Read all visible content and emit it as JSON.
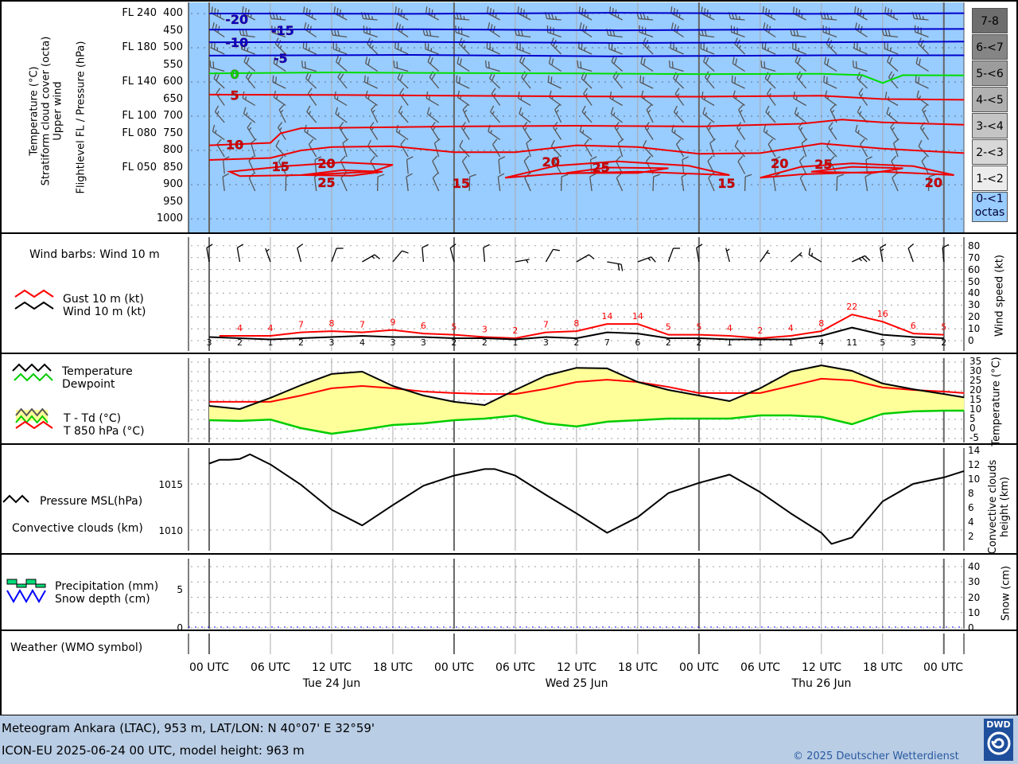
{
  "footer": {
    "line1": "Meteogram Ankara (LTAC), 953 m, LAT/LON: N 40°07' E 32°59'",
    "line2": "ICON-EU 2025-06-24 00 UTC, model height: 963 m",
    "copyright": "© 2025 Deutscher Wetterdienst",
    "logo_text": "DWD"
  },
  "time_axis": {
    "labels": [
      "00 UTC",
      "06 UTC",
      "12 UTC",
      "18 UTC",
      "00 UTC",
      "06 UTC",
      "12 UTC",
      "18 UTC",
      "00 UTC",
      "06 UTC",
      "12 UTC",
      "18 UTC",
      "00 UTC"
    ],
    "hours": [
      0,
      6,
      12,
      18,
      24,
      30,
      36,
      42,
      48,
      54,
      60,
      66,
      72
    ],
    "dates": [
      "Tue 24 Jun",
      "Wed 25 Jun",
      "Thu 26 Jun"
    ],
    "date_hours": [
      12,
      36,
      60
    ]
  },
  "chart_data": [
    {
      "type": "line",
      "panel": "upper_air",
      "title_lines": [
        "Temperature (°C)",
        "Stratiform cloud cover (octa)",
        "Upper wind"
      ],
      "ylabel": "Flightlevel FL / Pressure (hPa)",
      "pressure_ticks": [
        400,
        450,
        500,
        550,
        600,
        650,
        700,
        750,
        800,
        850,
        900,
        950,
        1000
      ],
      "flightlevels": [
        {
          "label": "FL 240",
          "p": 400
        },
        {
          "label": "FL 180",
          "p": 500
        },
        {
          "label": "FL 140",
          "p": 600
        },
        {
          "label": "FL 100",
          "p": 700
        },
        {
          "label": "FL 080",
          "p": 750
        },
        {
          "label": "FL 050",
          "p": 850
        }
      ],
      "ylim": [
        1020,
        370
      ],
      "cloud_cover_octas": 0,
      "cloud_legend": [
        "7-8",
        "6-<7",
        "5-<6",
        "4-<5",
        "3-<4",
        "2-<3",
        "1-<2",
        "0-<1 octas"
      ],
      "cloud_legend_colors": [
        "#6e6e6e",
        "#858585",
        "#9c9c9c",
        "#b0b0b0",
        "#c4c4c4",
        "#d8d8d8",
        "#ececec",
        "#99ccff"
      ],
      "background_color": "#99ccff",
      "isotherms": [
        {
          "t": -20,
          "color": "#0000cc",
          "points": [
            [
              0,
              400
            ],
            [
              20,
              401
            ],
            [
              40,
              398
            ],
            [
              60,
              401
            ],
            [
              74,
              399
            ]
          ]
        },
        {
          "t": -15,
          "color": "#0000cc",
          "points": [
            [
              0,
              447
            ],
            [
              20,
              446
            ],
            [
              40,
              449
            ],
            [
              60,
              446
            ],
            [
              74,
              445
            ]
          ]
        },
        {
          "t": -10,
          "color": "#0000cc",
          "points": [
            [
              0,
              484
            ],
            [
              20,
              483
            ],
            [
              40,
              486
            ],
            [
              60,
              484
            ],
            [
              74,
              482
            ]
          ]
        },
        {
          "t": -5,
          "color": "#0000cc",
          "points": [
            [
              0,
              523
            ],
            [
              20,
              521
            ],
            [
              40,
              525
            ],
            [
              60,
              522
            ],
            [
              74,
              522
            ]
          ]
        },
        {
          "t": 0,
          "color": "#00dd00",
          "points": [
            [
              0,
              575
            ],
            [
              12,
              572
            ],
            [
              24,
              574
            ],
            [
              36,
              575
            ],
            [
              48,
              577
            ],
            [
              60,
              576
            ],
            [
              64,
              580
            ],
            [
              66,
              603
            ],
            [
              68,
              580
            ],
            [
              74,
              581
            ]
          ]
        },
        {
          "t": 5,
          "color": "#ee0000",
          "points": [
            [
              0,
              637
            ],
            [
              12,
              638
            ],
            [
              24,
              640
            ],
            [
              36,
              642
            ],
            [
              48,
              643
            ],
            [
              60,
              640
            ],
            [
              66,
              650
            ],
            [
              74,
              652
            ]
          ]
        },
        {
          "t": 10,
          "color": "#ee0000",
          "points": [
            [
              0,
              785
            ],
            [
              6,
              778
            ],
            [
              7,
              750
            ],
            [
              9,
              735
            ],
            [
              24,
              730
            ],
            [
              36,
              728
            ],
            [
              48,
              730
            ],
            [
              58,
              722
            ],
            [
              62,
              710
            ],
            [
              66,
              718
            ],
            [
              74,
              725
            ]
          ]
        },
        {
          "t": 15,
          "color": "#ee0000",
          "points": [
            [
              0,
              828
            ],
            [
              6,
              822
            ],
            [
              9,
              800
            ],
            [
              12,
              790
            ],
            [
              18,
              788
            ],
            [
              24,
              805
            ],
            [
              30,
              805
            ],
            [
              36,
              785
            ],
            [
              42,
              790
            ],
            [
              48,
              810
            ],
            [
              54,
              808
            ],
            [
              60,
              780
            ],
            [
              66,
              795
            ],
            [
              74,
              808
            ]
          ]
        }
      ],
      "isotherm_loops": [
        {
          "t": 20,
          "points": [
            [
              2,
              862
            ],
            [
              8,
              845
            ],
            [
              13,
              835
            ],
            [
              18,
              842
            ],
            [
              16,
              862
            ],
            [
              9,
              872
            ],
            [
              3,
              875
            ],
            [
              2,
              862
            ]
          ]
        },
        {
          "t": 20,
          "points": [
            [
              29,
              880
            ],
            [
              34,
              845
            ],
            [
              40,
              832
            ],
            [
              47,
              845
            ],
            [
              51,
              872
            ],
            [
              42,
              862
            ],
            [
              34,
              868
            ],
            [
              29,
              880
            ]
          ]
        },
        {
          "t": 20,
          "points": [
            [
              54,
              880
            ],
            [
              58,
              848
            ],
            [
              63,
              838
            ],
            [
              69,
              846
            ],
            [
              73,
              872
            ],
            [
              66,
              862
            ],
            [
              58,
              870
            ],
            [
              54,
              880
            ]
          ]
        },
        {
          "t": 25,
          "points": [
            [
              9,
              872
            ],
            [
              13,
              858
            ],
            [
              17,
              862
            ],
            [
              14,
              874
            ],
            [
              9,
              872
            ]
          ]
        },
        {
          "t": 25,
          "points": [
            [
              35,
              866
            ],
            [
              39,
              850
            ],
            [
              45,
              852
            ],
            [
              42,
              866
            ],
            [
              35,
              866
            ]
          ]
        },
        {
          "t": 25,
          "points": [
            [
              59,
              862
            ],
            [
              63,
              848
            ],
            [
              68,
              852
            ],
            [
              65,
              866
            ],
            [
              59,
              862
            ]
          ]
        }
      ],
      "isotherm_labels": [
        {
          "text": "-20",
          "h": 2.7,
          "p": 416,
          "color": "#0000cc"
        },
        {
          "text": "-15",
          "h": 7.2,
          "p": 449,
          "color": "#0000cc"
        },
        {
          "text": "-10",
          "h": 2.7,
          "p": 484,
          "color": "#0000cc"
        },
        {
          "text": "-5",
          "h": 7,
          "p": 530,
          "color": "#0000cc"
        },
        {
          "text": "0",
          "h": 2.5,
          "p": 577,
          "color": "#00dd00"
        },
        {
          "text": "5",
          "h": 2.5,
          "p": 638,
          "color": "#cc0000"
        },
        {
          "text": "10",
          "h": 2.5,
          "p": 782,
          "color": "#cc0000"
        },
        {
          "text": "15",
          "h": 7,
          "p": 846,
          "color": "#cc0000"
        },
        {
          "text": "20",
          "h": 11.5,
          "p": 837,
          "color": "#cc0000"
        },
        {
          "text": "25",
          "h": 11.5,
          "p": 893,
          "color": "#cc0000"
        },
        {
          "text": "15",
          "h": 24.7,
          "p": 895,
          "color": "#cc0000"
        },
        {
          "text": "20",
          "h": 33.5,
          "p": 832,
          "color": "#cc0000"
        },
        {
          "text": "25",
          "h": 38.4,
          "p": 849,
          "color": "#cc0000"
        },
        {
          "text": "15",
          "h": 50.7,
          "p": 895,
          "color": "#cc0000"
        },
        {
          "text": "20",
          "h": 55.9,
          "p": 837,
          "color": "#cc0000"
        },
        {
          "text": "25",
          "h": 60.2,
          "p": 839,
          "color": "#cc0000"
        },
        {
          "text": "20",
          "h": 71,
          "p": 893,
          "color": "#cc0000"
        }
      ],
      "upper_wind": [
        {
          "p": 400,
          "dir": 290,
          "kt": 35
        },
        {
          "p": 450,
          "dir": 290,
          "kt": 30
        },
        {
          "p": 500,
          "dir": 300,
          "kt": 25
        },
        {
          "p": 550,
          "dir": 300,
          "kt": 20
        },
        {
          "p": 600,
          "dir": 310,
          "kt": 20
        },
        {
          "p": 650,
          "dir": 310,
          "kt": 15
        },
        {
          "p": 700,
          "dir": 320,
          "kt": 15
        },
        {
          "p": 750,
          "dir": 320,
          "kt": 15
        },
        {
          "p": 800,
          "dir": 330,
          "kt": 10
        },
        {
          "p": 850,
          "dir": 340,
          "kt": 10
        },
        {
          "p": 900,
          "dir": 350,
          "kt": 10
        }
      ]
    },
    {
      "type": "line",
      "panel": "wind",
      "title": "Wind barbs: Wind 10 m",
      "legend": [
        "Gust 10 m (kt)",
        "Wind 10 m (kt)"
      ],
      "ylabel": "Wind speed (kt)",
      "yticks": [
        0,
        10,
        20,
        30,
        40,
        50,
        60,
        70,
        80
      ],
      "ylim": [
        0,
        80
      ],
      "wind_hours": [
        0,
        3,
        6,
        9,
        12,
        15,
        18,
        21,
        24,
        27,
        30,
        33,
        36,
        39,
        42,
        45,
        48,
        51,
        54,
        57,
        60,
        63,
        66,
        69,
        72
      ],
      "wind": [
        3,
        2,
        1,
        2,
        3,
        4,
        3,
        3,
        2,
        2,
        1,
        3,
        2,
        7,
        6,
        2,
        2,
        1,
        1,
        1,
        4,
        11,
        5,
        3,
        2
      ],
      "gust_hours": [
        3,
        6,
        9,
        12,
        15,
        18,
        21,
        24,
        27,
        30,
        33,
        36,
        39,
        42,
        45,
        48,
        51,
        54,
        57,
        60,
        63,
        66,
        69,
        72
      ],
      "gust": [
        4,
        4,
        7,
        8,
        7,
        9,
        6,
        5,
        3,
        2,
        7,
        8,
        14,
        14,
        5,
        5,
        4,
        2,
        4,
        8,
        22,
        16,
        6,
        5
      ],
      "wind_dir": [
        350,
        350,
        340,
        345,
        20,
        60,
        40,
        355,
        345,
        355,
        80,
        30,
        60,
        100,
        70,
        20,
        350,
        345,
        35,
        50,
        300,
        65,
        350,
        340,
        355
      ],
      "colors": {
        "gust": "#ff0000",
        "wind": "#000000"
      }
    },
    {
      "type": "area",
      "panel": "temperature",
      "legend": [
        "Temperature",
        "Dewpoint",
        "T - Td (°C)",
        "T 850 hPa (°C)"
      ],
      "ylabel": "Temperature (°C)",
      "yticks": [
        -5,
        0,
        5,
        10,
        15,
        20,
        25,
        30,
        35
      ],
      "ylim": [
        -5,
        35
      ],
      "hours": [
        0,
        3,
        6,
        9,
        12,
        15,
        18,
        21,
        24,
        27,
        30,
        33,
        36,
        39,
        42,
        45,
        48,
        51,
        54,
        57,
        60,
        63,
        66,
        69,
        72,
        74
      ],
      "temperature": [
        12.1,
        10.4,
        16.3,
        22.9,
        28.8,
        30,
        22.5,
        17.5,
        14.2,
        12.5,
        20.4,
        27.9,
        32,
        31.7,
        24.6,
        20.4,
        17.5,
        14.6,
        21.3,
        30,
        33.3,
        30.4,
        23.8,
        20.8,
        18.3,
        16.5
      ],
      "dewpoint": [
        4.6,
        4.2,
        4.9,
        0.4,
        -2.5,
        -0.4,
        2.1,
        2.9,
        4.6,
        5.4,
        7,
        2.9,
        1.3,
        3.8,
        4.6,
        5.4,
        5.4,
        5.4,
        7.1,
        7.1,
        6.3,
        2.5,
        7.9,
        9.2,
        9.6,
        9.6
      ],
      "t850": [
        14.2,
        14.2,
        14.2,
        17.5,
        21.3,
        22.5,
        21.3,
        19.6,
        18.8,
        18.3,
        18.3,
        21,
        24.6,
        25.8,
        24.6,
        22,
        18.8,
        18.8,
        18.8,
        22.5,
        26.3,
        25.4,
        21.7,
        20.4,
        19.6,
        18.8
      ],
      "colors": {
        "temperature": "#000000",
        "dewpoint": "#00cc00",
        "t850": "#ff0000",
        "spread_fill": "#ffff99"
      }
    },
    {
      "type": "line",
      "panel": "pressure",
      "legend": [
        "Pressure MSL(hPa)",
        "Convective clouds (km)"
      ],
      "ylabel": "Convective clouds height (km)",
      "yticks_left": [
        1010,
        1015
      ],
      "yticks_right": [
        2,
        4,
        6,
        8,
        10,
        12,
        14
      ],
      "ylim": [
        1007.8,
        1020.6
      ],
      "hours": [
        0,
        1,
        2,
        3,
        4,
        6,
        9,
        12,
        15,
        18,
        21,
        24,
        27,
        28,
        30,
        33,
        36,
        39,
        42,
        45,
        48,
        51,
        54,
        57,
        60,
        61,
        63,
        66,
        69,
        72,
        74
      ],
      "pressure": [
        1017.2,
        1017.6,
        1017.6,
        1017.7,
        1018.2,
        1017.1,
        1014.9,
        1012.2,
        1010.5,
        1012.7,
        1014.8,
        1015.9,
        1016.6,
        1016.6,
        1015.9,
        1013.8,
        1011.8,
        1009.7,
        1011.4,
        1014,
        1015.1,
        1016,
        1014.1,
        1011.8,
        1009.7,
        1008.5,
        1009.2,
        1013.1,
        1015,
        1015.7,
        1016.4
      ]
    },
    {
      "type": "bar",
      "panel": "precipitation",
      "legend": [
        "Precipitation (mm)",
        "Snow depth (cm)"
      ],
      "ylabel": "Snow (cm)",
      "yticks_left": [
        0,
        5
      ],
      "yticks_right": [
        0,
        10,
        20,
        30,
        40
      ],
      "precipitation_mm": 0,
      "snow_depth_cm": 0,
      "colors": {
        "precipitation": "#00dd77",
        "snow": "#0000ff"
      }
    }
  ],
  "weather_panel": {
    "title": "Weather (WMO symbol)"
  }
}
